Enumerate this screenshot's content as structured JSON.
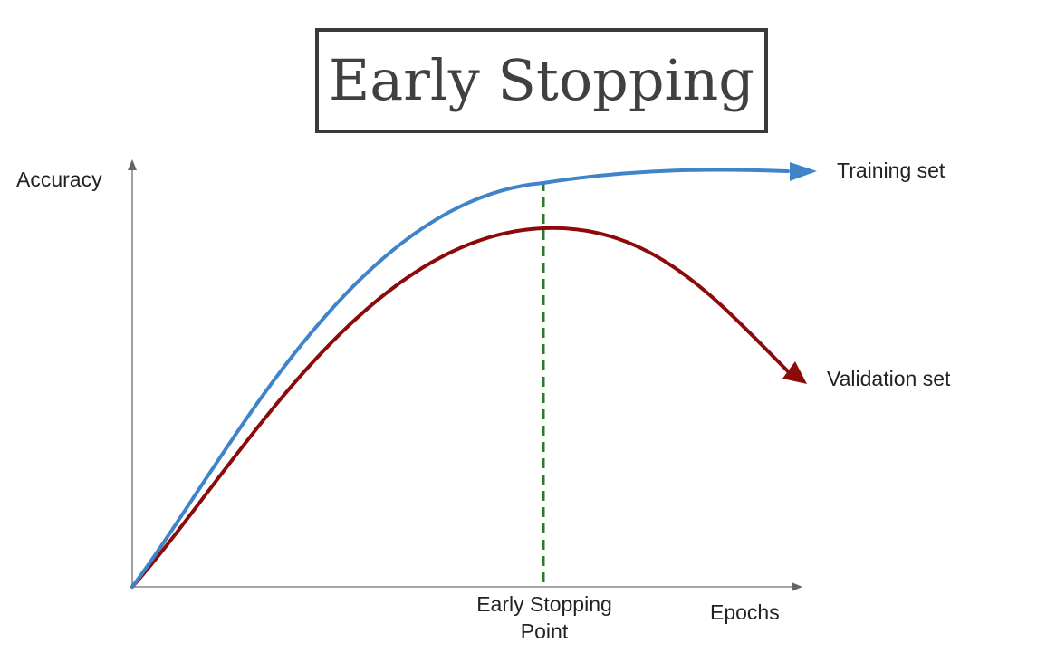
{
  "title": "Early Stopping",
  "axes": {
    "y_label": "Accuracy",
    "x_label": "Epochs"
  },
  "curves": {
    "training": {
      "label": "Training set",
      "color": "#3f84c8"
    },
    "validation": {
      "label": "Validation set",
      "color": "#8c0a0a"
    }
  },
  "stopping_point": {
    "label_line1": "Early Stopping",
    "label_line2": "Point",
    "color": "#2d7a2d"
  }
}
